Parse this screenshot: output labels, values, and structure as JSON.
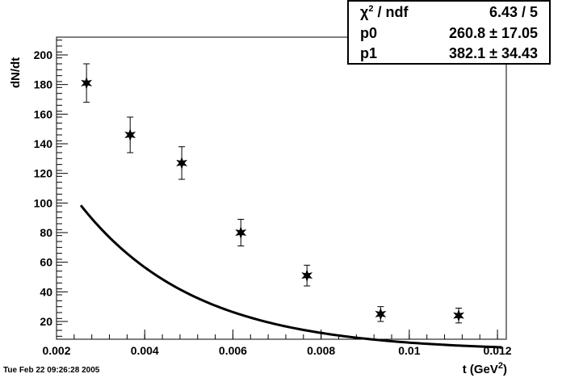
{
  "chart_data": {
    "type": "scatter",
    "xlabel": "t (GeV",
    "xlabel_sup": "2",
    "xlabel_close": ")",
    "ylabel": "dN/dt",
    "xlim": [
      0.002,
      0.0122
    ],
    "ylim": [
      8,
      212
    ],
    "x_ticks": [
      0.002,
      0.004,
      0.006,
      0.008,
      0.01,
      0.012
    ],
    "x_tick_labels": [
      "0.002",
      "0.004",
      "0.006",
      "0.008",
      "0.01",
      "0.012"
    ],
    "y_ticks": [
      20,
      40,
      60,
      80,
      100,
      120,
      140,
      160,
      180,
      200
    ],
    "y_tick_labels": [
      "20",
      "40",
      "60",
      "80",
      "100",
      "120",
      "140",
      "160",
      "180",
      "200"
    ],
    "grid": false,
    "points": [
      {
        "x": 0.00268,
        "y": 181,
        "yerr": 13
      },
      {
        "x": 0.00367,
        "y": 146,
        "yerr": 12
      },
      {
        "x": 0.00484,
        "y": 127,
        "yerr": 11
      },
      {
        "x": 0.00618,
        "y": 80,
        "yerr": 9
      },
      {
        "x": 0.00768,
        "y": 51,
        "yerr": 7
      },
      {
        "x": 0.00935,
        "y": 25,
        "yerr": 5
      },
      {
        "x": 0.01112,
        "y": 24,
        "yerr": 5
      }
    ],
    "fit": {
      "p0": 260.8,
      "p1": 382.1,
      "x_range": [
        0.00255,
        0.0121
      ]
    }
  },
  "stats": [
    {
      "name": "χ",
      "name_sup": "2",
      "name_rest": " / ndf",
      "value": "6.43 / 5"
    },
    {
      "name": "p0",
      "value": "260.8 ± 17.05"
    },
    {
      "name": "p1",
      "value": "382.1 ± 34.43"
    }
  ],
  "timestamp": "Tue Feb 22 09:26:28 2005"
}
